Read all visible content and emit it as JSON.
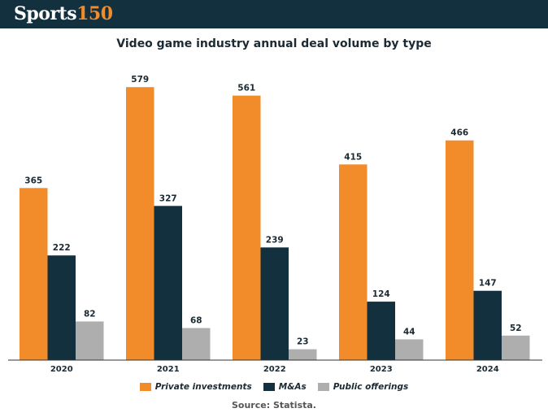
{
  "brand": {
    "name": "Sports",
    "number": "150"
  },
  "colors": {
    "private": "#f28b2a",
    "ma": "#13303f",
    "public": "#aeaeae"
  },
  "chart_data": {
    "type": "bar",
    "title": "Video game industry annual deal volume by type",
    "categories": [
      "2020",
      "2021",
      "2022",
      "2023",
      "2024"
    ],
    "series": [
      {
        "name": "Private investments",
        "values": [
          365,
          579,
          561,
          415,
          466
        ]
      },
      {
        "name": "M&As",
        "values": [
          222,
          327,
          239,
          124,
          147
        ]
      },
      {
        "name": "Public offerings",
        "values": [
          82,
          68,
          23,
          44,
          52
        ]
      }
    ],
    "ylim": [
      0,
      600
    ],
    "grid": false,
    "legend": "bottom-center",
    "source": "Source: Statista."
  }
}
